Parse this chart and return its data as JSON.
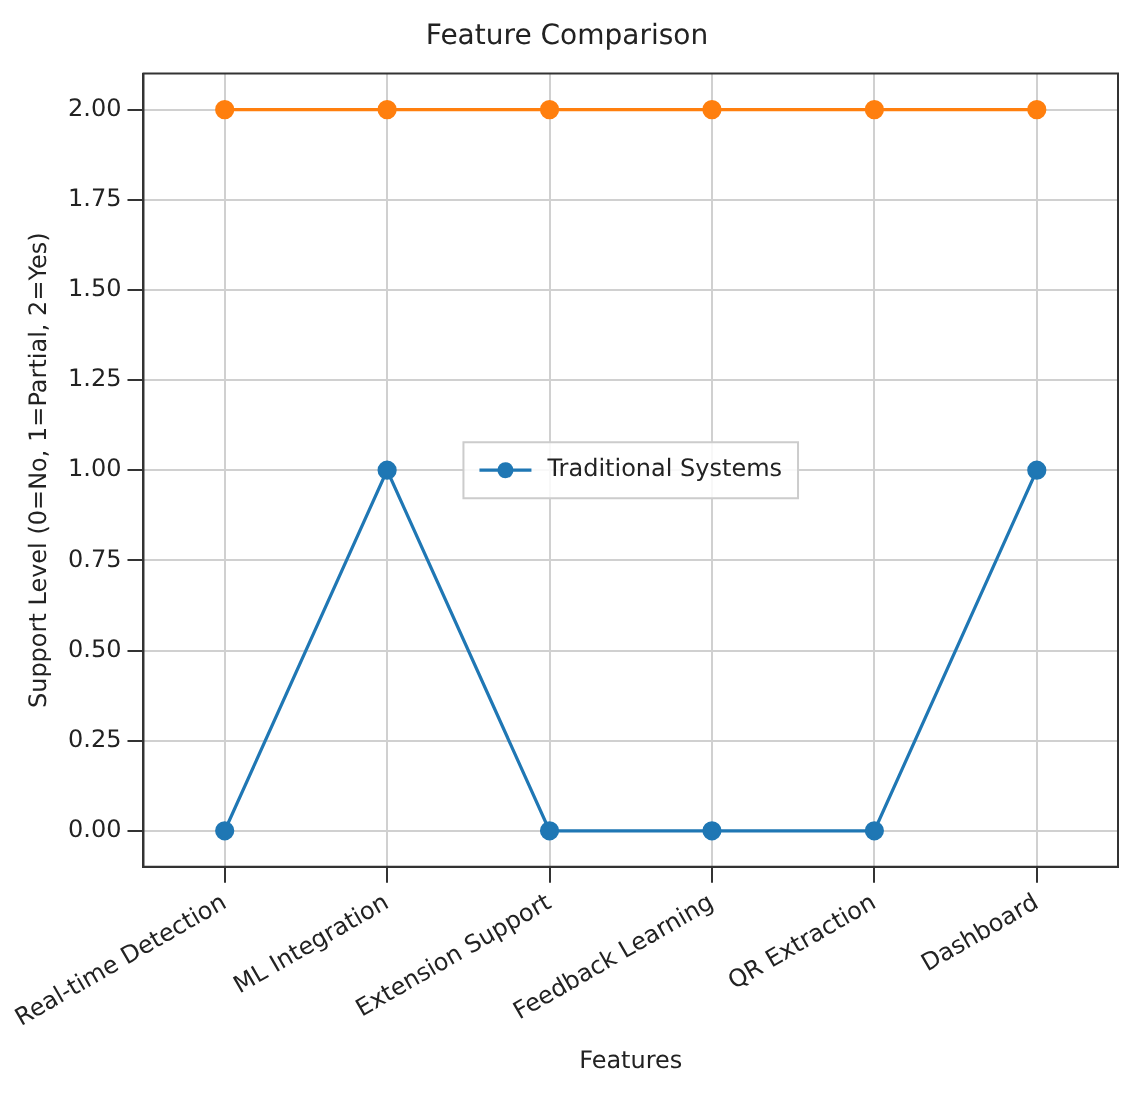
{
  "chart_data": {
    "type": "line",
    "title": "Feature Comparison",
    "xlabel": "Features",
    "ylabel": "Support Level (0=No, 1=Partial, 2=Yes)",
    "categories": [
      "Real-time Detection",
      "ML Integration",
      "Extension Support",
      "Feedback Learning",
      "QR Extraction",
      "Dashboard"
    ],
    "series": [
      {
        "name": "Traditional Systems",
        "color": "#1f77b4",
        "values": [
          0,
          1,
          0,
          0,
          0,
          1
        ]
      },
      {
        "color": "#ff7f0e",
        "values": [
          2,
          2,
          2,
          2,
          2,
          2
        ]
      }
    ],
    "ylim": [
      -0.1,
      2.1
    ],
    "yticks": [
      {
        "value": 0,
        "label": "0.00"
      },
      {
        "value": 0.25,
        "label": "0.25"
      },
      {
        "value": 0.5,
        "label": "0.50"
      },
      {
        "value": 0.75,
        "label": "0.75"
      },
      {
        "value": 1,
        "label": "1.00"
      },
      {
        "value": 1.25,
        "label": "1.25"
      },
      {
        "value": 1.5,
        "label": "1.50"
      },
      {
        "value": 1.75,
        "label": "1.75"
      },
      {
        "value": 2,
        "label": "2.00"
      }
    ],
    "grid": true,
    "legend": "center",
    "marker": "circle",
    "line_style": "solid"
  }
}
